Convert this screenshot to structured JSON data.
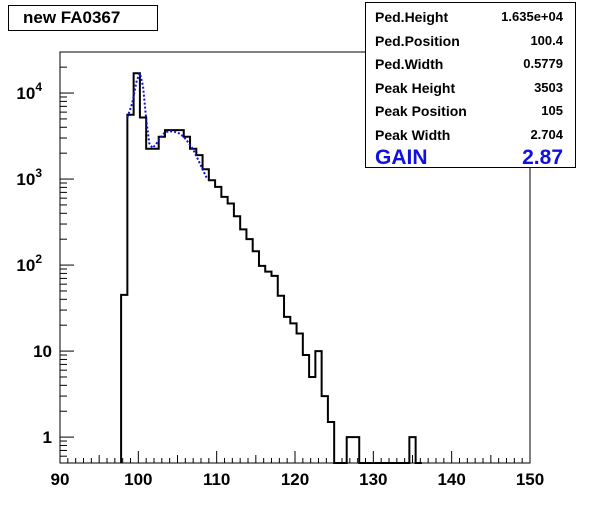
{
  "chart_data": {
    "type": "histogram",
    "title": "new FA0367",
    "xlabel": "",
    "ylabel": "",
    "xlim": [
      90,
      150
    ],
    "ylim": [
      0.5,
      30000
    ],
    "log_y": true,
    "grid": false,
    "x_ticks": [
      "90",
      "100",
      "110",
      "120",
      "130",
      "140",
      "150"
    ],
    "y_ticks": [
      {
        "value": 1,
        "label": "1"
      },
      {
        "value": 10,
        "label": "10"
      },
      {
        "value": 100,
        "label": "10",
        "exp": "2"
      },
      {
        "value": 1000,
        "label": "10",
        "exp": "3"
      },
      {
        "value": 10000,
        "label": "10",
        "exp": "4"
      }
    ],
    "bin_width": 0.8,
    "bin_start": 97.8,
    "counts": [
      45,
      5600,
      17000,
      5200,
      2250,
      2250,
      3100,
      3700,
      3700,
      3700,
      3100,
      2250,
      1900,
      1300,
      970,
      810,
      620,
      520,
      370,
      260,
      200,
      145,
      98,
      84,
      75,
      44,
      25,
      21,
      16,
      9,
      5,
      10,
      3,
      1.5,
      0.5,
      0.5,
      1,
      1,
      0.5,
      0.5,
      0.5,
      0.5,
      0.5,
      0.5,
      0.5,
      0.5,
      1,
      0.5
    ],
    "fit_line": {
      "color": "#1010e0",
      "x": [
        98.6,
        99.2,
        99.8,
        100.2,
        100.6,
        101.0,
        101.4,
        101.8,
        102.2,
        102.8,
        103.4,
        104.0,
        104.6,
        105.2,
        105.8,
        106.4,
        107.0,
        107.6,
        108.2,
        108.8
      ],
      "y": [
        5200,
        7500,
        14000,
        17000,
        12000,
        5000,
        2600,
        2300,
        2500,
        3000,
        3500,
        3600,
        3550,
        3400,
        3100,
        2650,
        2200,
        1700,
        1300,
        1000
      ]
    },
    "stats": [
      {
        "name": "Ped.Height",
        "value": "1.635e+04"
      },
      {
        "name": "Ped.Position",
        "value": "100.4"
      },
      {
        "name": "Ped.Width",
        "value": "0.5779"
      },
      {
        "name": "Peak Height",
        "value": "3503"
      },
      {
        "name": "Peak Position",
        "value": "105"
      },
      {
        "name": "Peak Width",
        "value": "2.704"
      },
      {
        "name": "GAIN",
        "value": "2.87"
      }
    ]
  }
}
